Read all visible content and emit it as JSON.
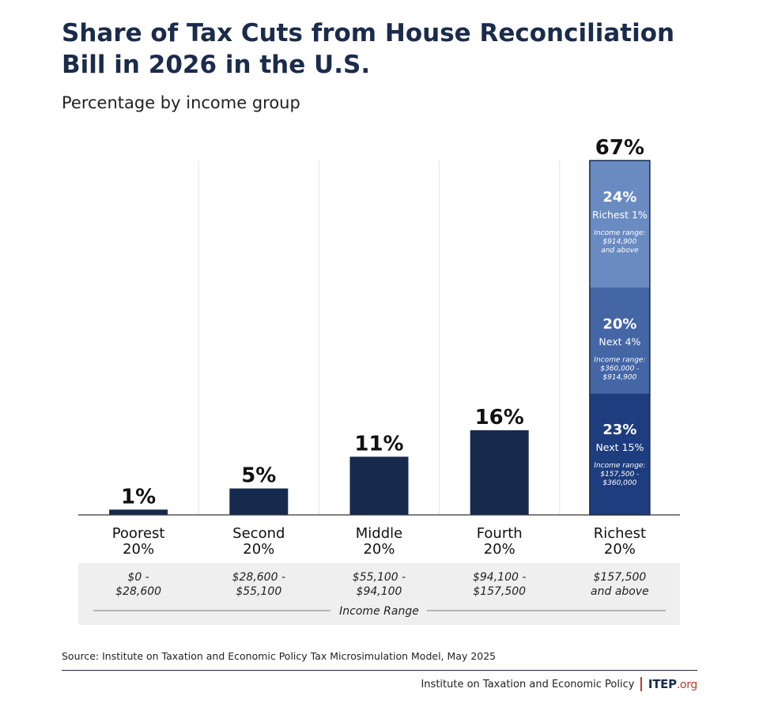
{
  "title": "Share of Tax Cuts from House Reconciliation Bill in 2026 in the U.S.",
  "subtitle": "Percentage by income group",
  "source": "Source: Institute on Taxation and Economic Policy Tax Microsimulation Model, May 2025",
  "org_name": "Institute on Taxation and Economic Policy",
  "logo": {
    "main": "ITEP",
    "tld": ".org"
  },
  "colors": {
    "bar": "#162a4d",
    "seg_next15": "#1e3d7e",
    "seg_next4": "#4466a5",
    "seg_richest1": "#6a8bc2",
    "range_band": "#efefef",
    "grid": "#e4e4e4",
    "axis": "#333333"
  },
  "chart_data": {
    "type": "bar",
    "title": "Share of Tax Cuts from House Reconciliation Bill in 2026 in the U.S.",
    "subtitle": "Percentage by income group",
    "xlabel": "Income Range",
    "ylabel": "",
    "ylim": [
      0,
      67
    ],
    "categories": [
      {
        "name": [
          "Poorest",
          "20%"
        ],
        "range": [
          "$0 -",
          "$28,600"
        ],
        "value": 1,
        "label": "1%"
      },
      {
        "name": [
          "Second",
          "20%"
        ],
        "range": [
          "$28,600 -",
          "$55,100"
        ],
        "value": 5,
        "label": "5%"
      },
      {
        "name": [
          "Middle",
          "20%"
        ],
        "range": [
          "$55,100 -",
          "$94,100"
        ],
        "value": 11,
        "label": "11%"
      },
      {
        "name": [
          "Fourth",
          "20%"
        ],
        "range": [
          "$94,100 -",
          "$157,500"
        ],
        "value": 16,
        "label": "16%"
      },
      {
        "name": [
          "Richest",
          "20%"
        ],
        "range": [
          "$157,500",
          "and above"
        ],
        "value": 67,
        "label": "67%"
      }
    ],
    "stacked_breakdown": {
      "category": "Richest 20%",
      "segments": [
        {
          "name": "Next 15%",
          "value": 23,
          "label": "23%",
          "range_title": "Income range:",
          "range": [
            "$157,500 -",
            "$360,000"
          ],
          "color_key": "seg_next15"
        },
        {
          "name": "Next 4%",
          "value": 20,
          "label": "20%",
          "range_title": "Income range:",
          "range": [
            "$360,000 -",
            "$914,900"
          ],
          "color_key": "seg_next4"
        },
        {
          "name": "Richest 1%",
          "value": 24,
          "label": "24%",
          "range_title": "Income range:",
          "range": [
            "$914,900",
            "and above"
          ],
          "color_key": "seg_richest1"
        }
      ]
    }
  }
}
